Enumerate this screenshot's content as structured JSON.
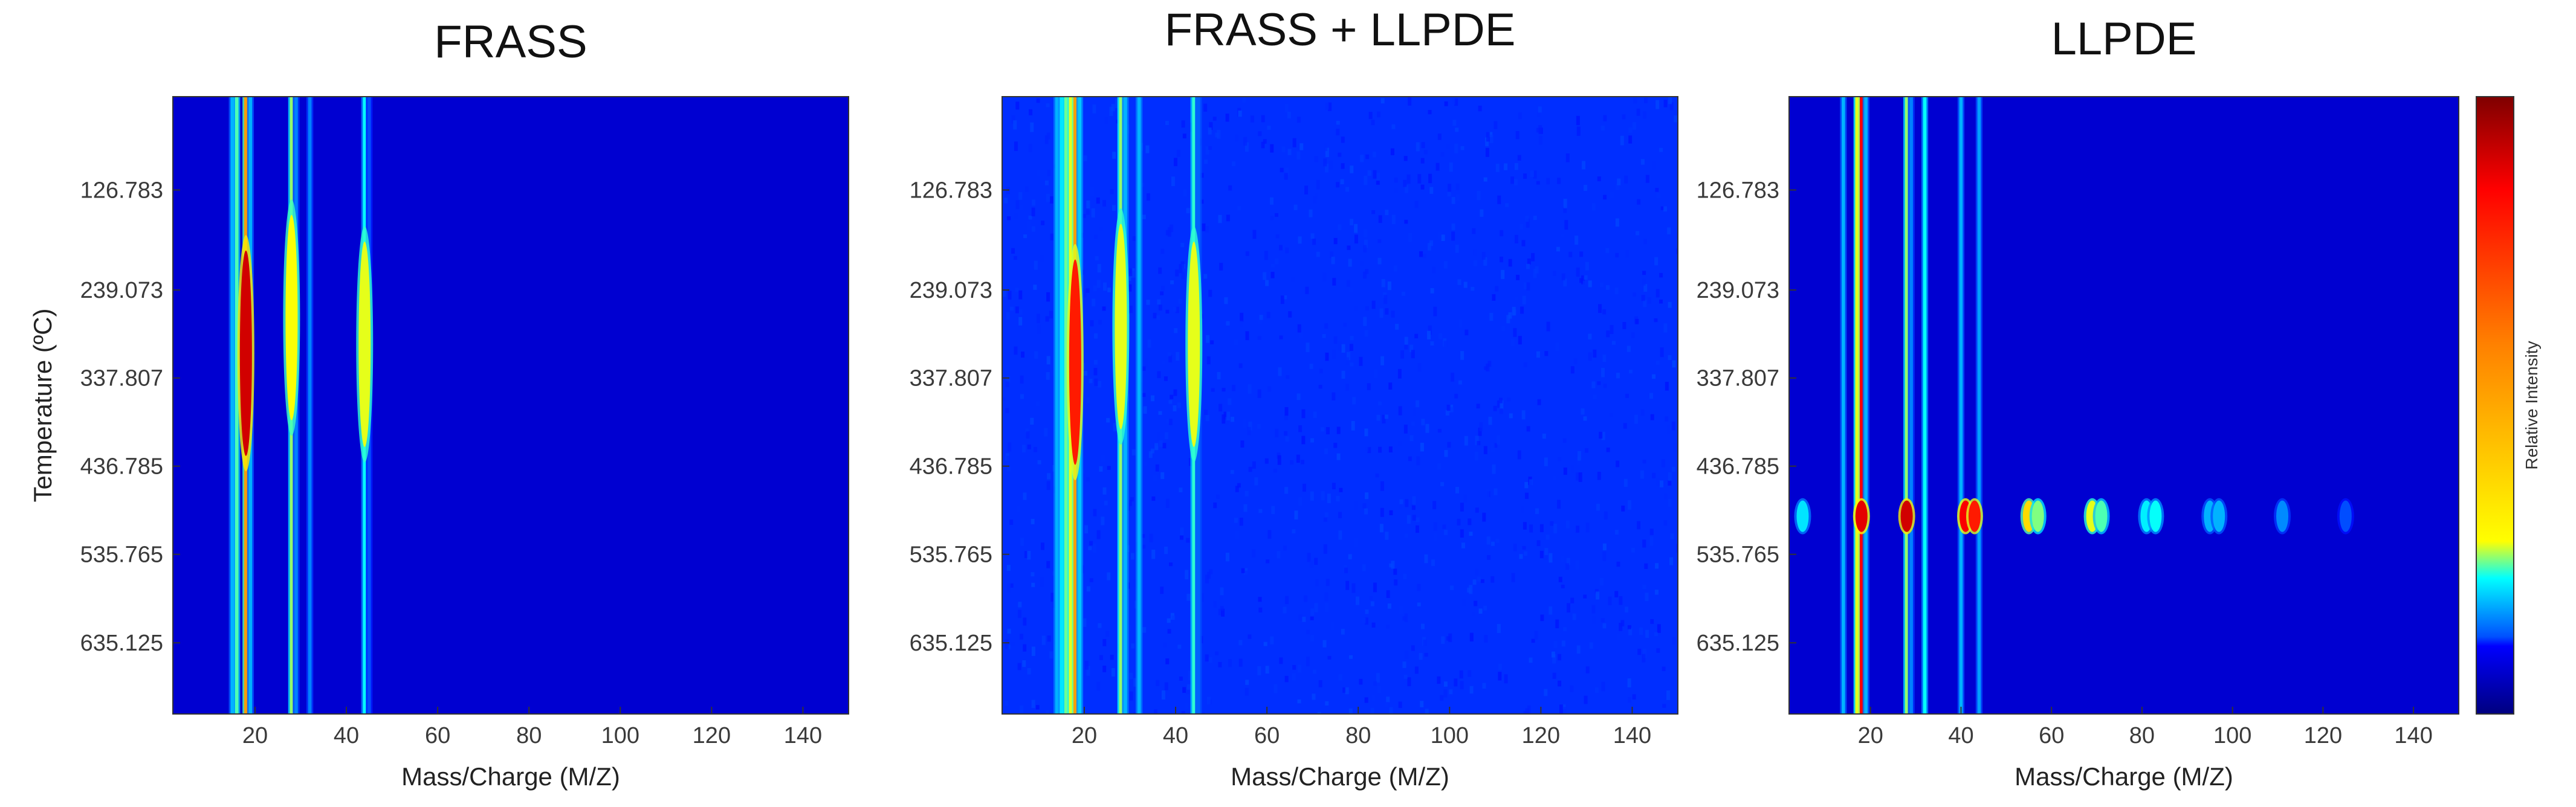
{
  "chart_data": [
    {
      "type": "heatmap",
      "title": "FRASS",
      "xlabel": "Mass/Charge (M/Z)",
      "ylabel": "Temperature (ºC)",
      "xlim": [
        2,
        150
      ],
      "ylim": [
        22,
        715
      ],
      "x_ticks": [
        20,
        40,
        60,
        80,
        100,
        120,
        140
      ],
      "y_ticks": [
        "126.783",
        "239.073",
        "337.807",
        "436.785",
        "535.765",
        "635.125"
      ],
      "background_level": 0.08,
      "bands": [
        {
          "mz": 15,
          "level": 0.3
        },
        {
          "mz": 16,
          "level": 0.45
        },
        {
          "mz": 18,
          "level": 0.72
        },
        {
          "mz": 19,
          "level": 0.3
        },
        {
          "mz": 28,
          "level": 0.52
        },
        {
          "mz": 29,
          "level": 0.25
        },
        {
          "mz": 32,
          "level": 0.25
        },
        {
          "mz": 44,
          "level": 0.38
        },
        {
          "mz": 45,
          "level": 0.2
        }
      ],
      "hotspots": [
        {
          "mz": 18,
          "temp": 310,
          "level": 0.92
        },
        {
          "mz": 28,
          "temp": 270,
          "level": 0.62
        },
        {
          "mz": 44,
          "temp": 300,
          "level": 0.6
        }
      ],
      "noise": false
    },
    {
      "type": "heatmap",
      "title": "FRASS + LLPDE",
      "xlabel": "Mass/Charge (M/Z)",
      "ylabel": "",
      "xlim": [
        2,
        150
      ],
      "ylim": [
        22,
        715
      ],
      "x_ticks": [
        20,
        40,
        60,
        80,
        100,
        120,
        140
      ],
      "y_ticks": [
        "126.783",
        "239.073",
        "337.807",
        "436.785",
        "535.765",
        "635.125"
      ],
      "background_level": 0.17,
      "bands": [
        {
          "mz": 14,
          "level": 0.3
        },
        {
          "mz": 15,
          "level": 0.35
        },
        {
          "mz": 16,
          "level": 0.48
        },
        {
          "mz": 17,
          "level": 0.6
        },
        {
          "mz": 18,
          "level": 0.72
        },
        {
          "mz": 19,
          "level": 0.32
        },
        {
          "mz": 28,
          "level": 0.52
        },
        {
          "mz": 29,
          "level": 0.3
        },
        {
          "mz": 32,
          "level": 0.3
        },
        {
          "mz": 44,
          "level": 0.42
        },
        {
          "mz": 45,
          "level": 0.22
        }
      ],
      "hotspots": [
        {
          "mz": 18,
          "temp": 320,
          "level": 0.85
        },
        {
          "mz": 28,
          "temp": 280,
          "level": 0.6
        },
        {
          "mz": 44,
          "temp": 300,
          "level": 0.6
        }
      ],
      "noise": true
    },
    {
      "type": "heatmap",
      "title": "LLPDE",
      "xlabel": "Mass/Charge (M/Z)",
      "ylabel": "",
      "xlim": [
        2,
        150
      ],
      "ylim": [
        22,
        715
      ],
      "x_ticks": [
        20,
        40,
        60,
        80,
        100,
        120,
        140
      ],
      "y_ticks": [
        "126.783",
        "239.073",
        "337.807",
        "436.785",
        "535.765",
        "635.125"
      ],
      "background_level": 0.08,
      "bands": [
        {
          "mz": 14,
          "level": 0.3
        },
        {
          "mz": 17,
          "level": 0.6
        },
        {
          "mz": 18,
          "level": 0.88
        },
        {
          "mz": 19,
          "level": 0.3
        },
        {
          "mz": 28,
          "level": 0.52
        },
        {
          "mz": 29,
          "level": 0.25
        },
        {
          "mz": 32,
          "level": 0.38
        },
        {
          "mz": 40,
          "level": 0.3
        },
        {
          "mz": 44,
          "level": 0.28
        }
      ],
      "hotspots": [
        {
          "mz": 5,
          "temp": 493,
          "level": 0.35
        },
        {
          "mz": 18,
          "temp": 493,
          "level": 0.9
        },
        {
          "mz": 28,
          "temp": 493,
          "level": 0.92
        },
        {
          "mz": 41,
          "temp": 493,
          "level": 0.88
        },
        {
          "mz": 43,
          "temp": 493,
          "level": 0.85
        },
        {
          "mz": 55,
          "temp": 493,
          "level": 0.66
        },
        {
          "mz": 57,
          "temp": 493,
          "level": 0.5
        },
        {
          "mz": 69,
          "temp": 493,
          "level": 0.6
        },
        {
          "mz": 71,
          "temp": 493,
          "level": 0.45
        },
        {
          "mz": 81,
          "temp": 493,
          "level": 0.36
        },
        {
          "mz": 83,
          "temp": 493,
          "level": 0.38
        },
        {
          "mz": 95,
          "temp": 493,
          "level": 0.3
        },
        {
          "mz": 97,
          "temp": 493,
          "level": 0.3
        },
        {
          "mz": 111,
          "temp": 493,
          "level": 0.26
        },
        {
          "mz": 125,
          "temp": 493,
          "level": 0.2
        }
      ],
      "noise": false
    }
  ],
  "colorbar": {
    "label": "Relative Intensity",
    "colormap": "jet",
    "stops": [
      "#00007f",
      "#0000ff",
      "#00ffff",
      "#ffff00",
      "#ff0000",
      "#7f0000"
    ]
  }
}
